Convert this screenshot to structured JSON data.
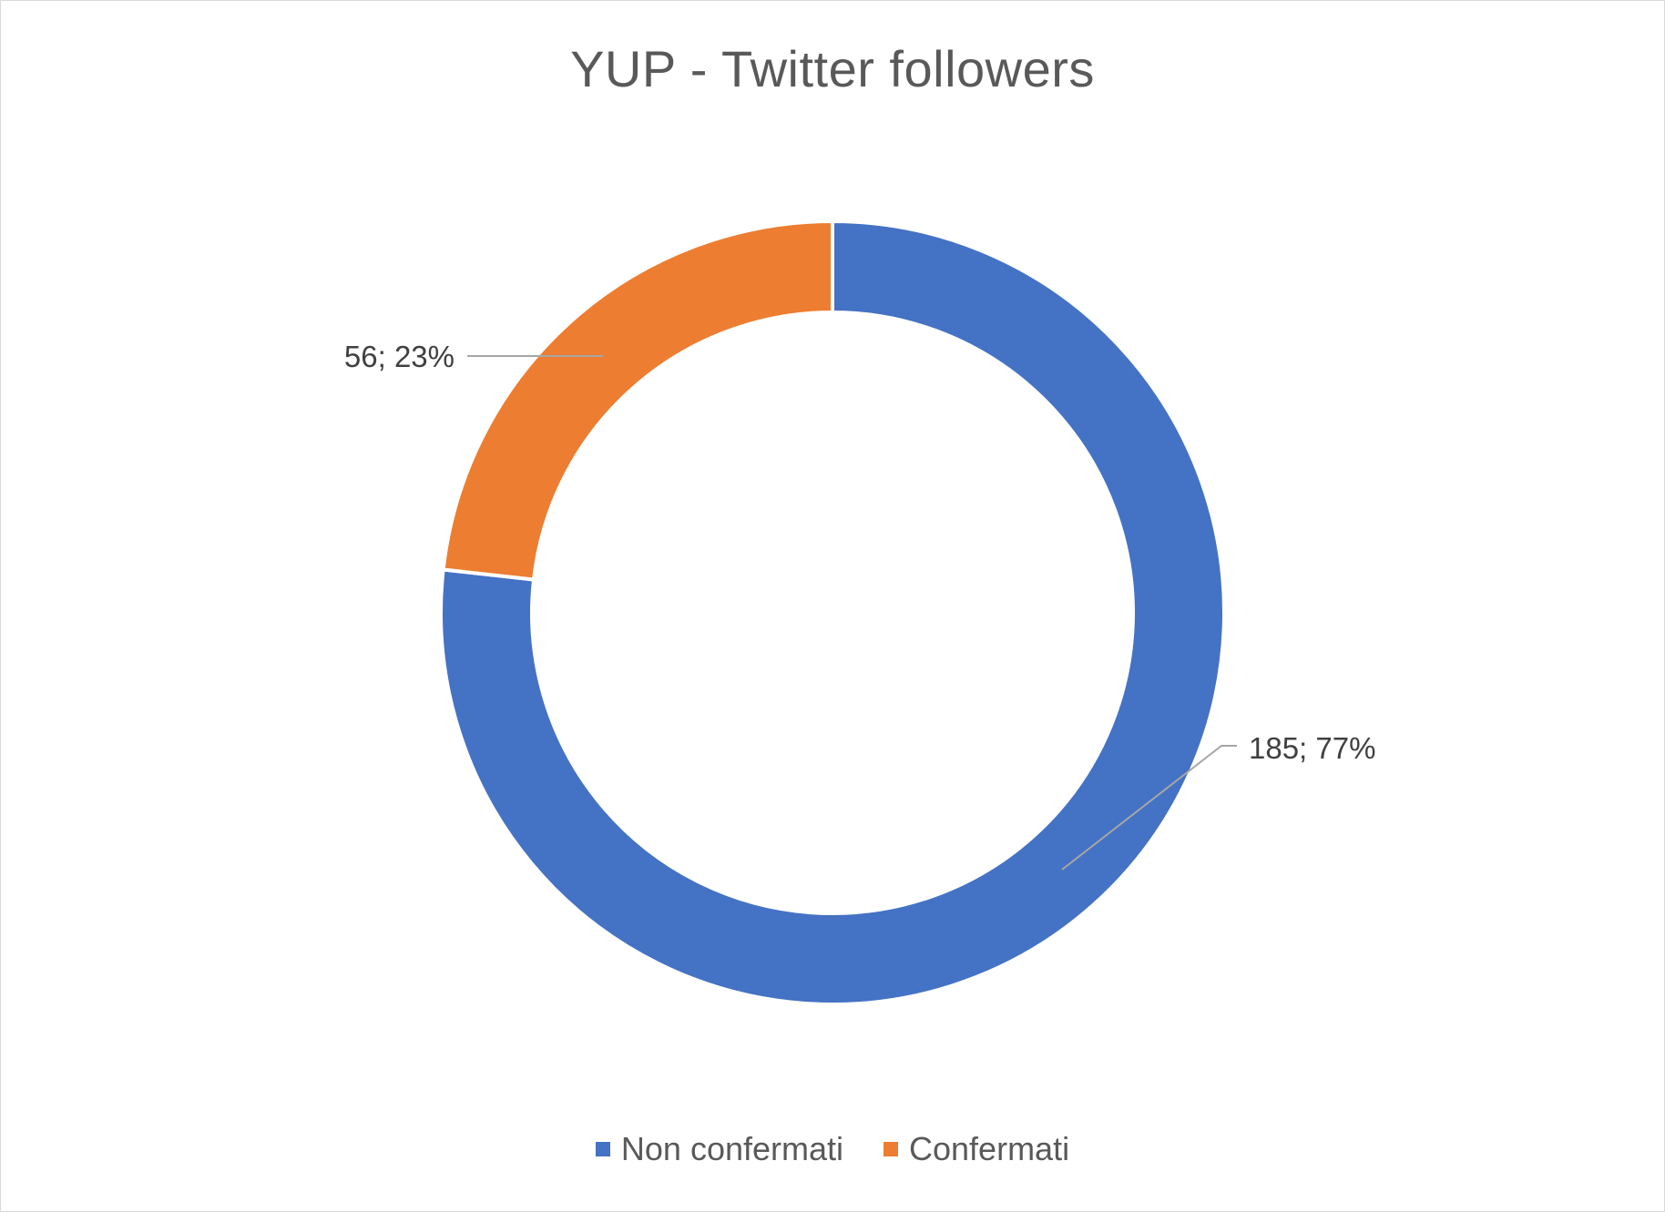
{
  "chart_data": {
    "type": "pie",
    "variant": "donut",
    "title": "YUP - Twitter followers",
    "series": [
      {
        "name": "Non confermati",
        "value": 185,
        "percent": 77,
        "label": "185; 77%",
        "color": "#4472C4"
      },
      {
        "name": "Confermati",
        "value": 56,
        "percent": 23,
        "label": "56; 23%",
        "color": "#ED7D31"
      }
    ],
    "legend_position": "bottom",
    "start": "clockwise from 12 o'clock"
  }
}
